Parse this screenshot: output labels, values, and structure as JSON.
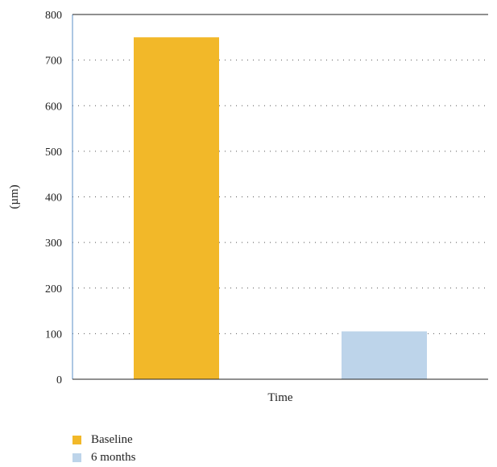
{
  "chart_data": {
    "type": "bar",
    "title": "",
    "xlabel": "Time",
    "ylabel": "(µm)",
    "ylim": [
      0,
      800
    ],
    "yticks": [
      0,
      100,
      200,
      300,
      400,
      500,
      600,
      700,
      800
    ],
    "grid": true,
    "legend_position": "bottom-left",
    "series": [
      {
        "name": "Baseline",
        "value": 750,
        "color": "#F2B829"
      },
      {
        "name": "6 months",
        "value": 105,
        "color": "#BDD4EA"
      }
    ]
  }
}
